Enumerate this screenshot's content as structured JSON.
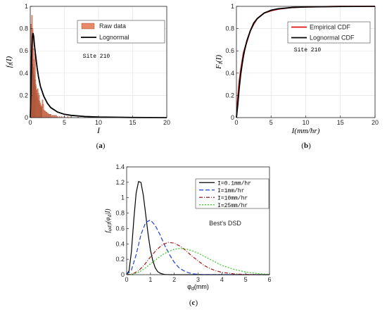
{
  "chart_data": [
    {
      "type": "bar",
      "panel": "(a)",
      "caption_pre": "(",
      "caption_letter": "a",
      "caption_post": ")",
      "xlabel": "I",
      "ylabel": "f_I(I)",
      "xlim": [
        0,
        20
      ],
      "ylim": [
        0,
        1
      ],
      "xticks": [
        "0",
        "5",
        "10",
        "15",
        "20"
      ],
      "yticks": [
        "0",
        "0.2",
        "0.4",
        "0.6",
        "0.8",
        "1"
      ],
      "annotation": "Site 210",
      "grid": true,
      "legend_position": "top-right",
      "legend": [
        "Raw data",
        "Lognormal"
      ],
      "series": [
        {
          "name": "Raw data",
          "kind": "histogram",
          "color": "#e8896a",
          "bin_width": 0.25,
          "bins": [
            0.05,
            0.1,
            0.15,
            0.2,
            0.25,
            0.3,
            0.35,
            0.4,
            0.45,
            0.5,
            0.55,
            0.6,
            0.65,
            0.7,
            0.75,
            0.8,
            0.85,
            0.9,
            0.95,
            1.0,
            1.05,
            1.1,
            1.15,
            1.2,
            1.25,
            1.3,
            1.35,
            1.4,
            1.45,
            1.5,
            1.55,
            1.6,
            1.65,
            1.7,
            1.75,
            1.8,
            1.9,
            2.0,
            2.1,
            2.2,
            2.3,
            2.4,
            2.5,
            2.6,
            2.7,
            2.8,
            2.9,
            3.0,
            3.2,
            3.4,
            3.6,
            3.8,
            4.0,
            4.3,
            4.6,
            5.0,
            5.5,
            6.0,
            7.0,
            8.0,
            9.0
          ],
          "values": [
            0.42,
            0.55,
            0.84,
            0.66,
            0.92,
            0.55,
            0.8,
            0.48,
            0.62,
            0.52,
            0.45,
            0.38,
            0.4,
            0.58,
            0.34,
            0.3,
            0.28,
            0.24,
            0.25,
            0.22,
            0.2,
            0.26,
            0.18,
            0.22,
            0.16,
            0.2,
            0.15,
            0.14,
            0.13,
            0.12,
            0.11,
            0.1,
            0.1,
            0.09,
            0.08,
            0.16,
            0.12,
            0.07,
            0.06,
            0.06,
            0.05,
            0.05,
            0.04,
            0.04,
            0.03,
            0.03,
            0.03,
            0.03,
            0.02,
            0.02,
            0.02,
            0.02,
            0.01,
            0.01,
            0.01,
            0.01,
            0.01,
            0.01,
            0.005,
            0.005,
            0.005
          ]
        },
        {
          "name": "Lognormal",
          "kind": "line",
          "color": "#000000",
          "x": [
            0,
            0.1,
            0.2,
            0.3,
            0.4,
            0.5,
            0.6,
            0.8,
            1.0,
            1.2,
            1.5,
            2.0,
            2.5,
            3,
            4,
            5,
            6,
            8,
            10,
            15,
            20
          ],
          "y": [
            0,
            0.25,
            0.55,
            0.72,
            0.76,
            0.73,
            0.66,
            0.55,
            0.45,
            0.37,
            0.28,
            0.19,
            0.13,
            0.09,
            0.05,
            0.03,
            0.02,
            0.01,
            0.005,
            0.001,
            0
          ]
        }
      ]
    },
    {
      "type": "line",
      "panel": "(b)",
      "caption_pre": "(",
      "caption_letter": "b",
      "caption_post": ")",
      "xlabel": "I(mm/hr)",
      "ylabel": "F_I(I)",
      "xlim": [
        0,
        20
      ],
      "ylim": [
        0,
        1
      ],
      "xticks": [
        "0",
        "5",
        "10",
        "15",
        "20"
      ],
      "yticks": [
        "0",
        "0.2",
        "0.4",
        "0.6",
        "0.8",
        "1"
      ],
      "annotation": "Site 210",
      "grid": true,
      "legend_position": "top-right",
      "legend": [
        "Empirical CDF",
        "Lognormal CDF"
      ],
      "series": [
        {
          "name": "Empirical CDF",
          "color": "#e01010",
          "x": [
            0,
            0.2,
            0.4,
            0.6,
            0.8,
            1.0,
            1.2,
            1.5,
            2.0,
            2.5,
            3,
            4,
            5,
            6,
            8,
            10,
            15,
            20
          ],
          "y": [
            0,
            0.18,
            0.32,
            0.42,
            0.5,
            0.58,
            0.62,
            0.68,
            0.78,
            0.84,
            0.89,
            0.94,
            0.96,
            0.975,
            0.99,
            0.995,
            1.0,
            1.0
          ]
        },
        {
          "name": "Lognormal CDF",
          "color": "#000000",
          "x": [
            0,
            0.2,
            0.4,
            0.6,
            0.8,
            1.0,
            1.2,
            1.5,
            2.0,
            2.5,
            3,
            4,
            5,
            6,
            8,
            10,
            15,
            20
          ],
          "y": [
            0,
            0.12,
            0.26,
            0.38,
            0.47,
            0.55,
            0.61,
            0.69,
            0.78,
            0.85,
            0.89,
            0.94,
            0.965,
            0.978,
            0.99,
            0.995,
            0.999,
            1.0
          ]
        }
      ]
    },
    {
      "type": "line",
      "panel": "(c)",
      "caption_pre": "(",
      "caption_letter": "c",
      "caption_post": ")",
      "xlabel": "φd(mm)",
      "ylabel": "f_φd|I(φd|I)",
      "xlim": [
        0,
        6
      ],
      "ylim": [
        0,
        1.4
      ],
      "xticks": [
        "0",
        "1",
        "2",
        "3",
        "4",
        "5",
        "6"
      ],
      "yticks": [
        "0",
        "0.2",
        "0.4",
        "0.6",
        "0.8",
        "1",
        "1.2",
        "1.4"
      ],
      "annotation": "Best's DSD",
      "grid": false,
      "legend_position": "top-right",
      "legend": [
        "I=0.1mm/hr",
        "I=1mm/hr",
        "I=10mm/hr",
        "I=25mm/hr"
      ],
      "series": [
        {
          "name": "I=0.1mm/hr",
          "color": "#000000",
          "dash": "",
          "x": [
            0,
            0.1,
            0.2,
            0.3,
            0.4,
            0.5,
            0.6,
            0.7,
            0.8,
            0.9,
            1.0,
            1.1,
            1.2,
            1.3,
            1.4,
            1.5,
            1.6,
            1.8,
            2.0,
            6
          ],
          "y": [
            0,
            0.05,
            0.3,
            0.72,
            1.06,
            1.21,
            1.2,
            1.03,
            0.78,
            0.53,
            0.32,
            0.18,
            0.09,
            0.04,
            0.02,
            0.01,
            0.003,
            0,
            0,
            0
          ]
        },
        {
          "name": "I=1mm/hr",
          "color": "#1f3fd6",
          "dash": "6,3",
          "x": [
            0,
            0.2,
            0.4,
            0.6,
            0.8,
            1.0,
            1.2,
            1.4,
            1.6,
            1.8,
            2.0,
            2.2,
            2.4,
            2.6,
            2.8,
            3.0,
            3.2,
            6
          ],
          "y": [
            0,
            0.06,
            0.26,
            0.52,
            0.68,
            0.71,
            0.64,
            0.52,
            0.38,
            0.26,
            0.16,
            0.09,
            0.05,
            0.025,
            0.01,
            0.005,
            0.002,
            0
          ]
        },
        {
          "name": "I=10mm/hr",
          "color": "#a01818",
          "dash": "5,2,1,2",
          "x": [
            0,
            0.25,
            0.5,
            0.75,
            1.0,
            1.25,
            1.5,
            1.75,
            2.0,
            2.25,
            2.5,
            2.75,
            3.0,
            3.25,
            3.5,
            3.75,
            4.0,
            4.5,
            5.0,
            6
          ],
          "y": [
            0,
            0.01,
            0.05,
            0.13,
            0.23,
            0.32,
            0.39,
            0.42,
            0.41,
            0.37,
            0.31,
            0.24,
            0.18,
            0.12,
            0.08,
            0.05,
            0.03,
            0.01,
            0.003,
            0
          ]
        },
        {
          "name": "I=25mm/hr",
          "color": "#33cc22",
          "dash": "2,2",
          "x": [
            0,
            0.25,
            0.5,
            0.75,
            1.0,
            1.25,
            1.5,
            1.75,
            2.0,
            2.25,
            2.5,
            2.75,
            3.0,
            3.25,
            3.5,
            3.75,
            4.0,
            4.5,
            5.0,
            5.5,
            6
          ],
          "y": [
            0,
            0.005,
            0.03,
            0.08,
            0.14,
            0.2,
            0.26,
            0.3,
            0.33,
            0.34,
            0.335,
            0.31,
            0.28,
            0.24,
            0.2,
            0.16,
            0.12,
            0.07,
            0.035,
            0.015,
            0.005
          ]
        }
      ]
    }
  ]
}
